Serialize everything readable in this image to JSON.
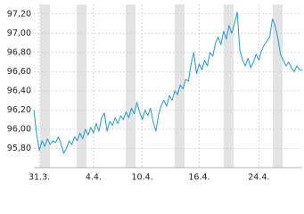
{
  "chart_data": {
    "type": "line",
    "series": [
      {
        "color": "#1a9bd7",
        "values": [
          96.2,
          95.95,
          95.78,
          95.88,
          95.82,
          95.9,
          95.84,
          95.88,
          95.86,
          95.92,
          95.85,
          95.75,
          95.8,
          95.88,
          95.84,
          95.92,
          95.88,
          95.96,
          95.9,
          96.0,
          95.94,
          96.02,
          95.96,
          96.06,
          95.98,
          96.12,
          96.17,
          95.98,
          96.08,
          96.04,
          96.12,
          96.06,
          96.14,
          96.1,
          96.18,
          96.12,
          96.22,
          96.16,
          96.28,
          96.18,
          96.1,
          96.2,
          96.14,
          96.22,
          96.08,
          95.98,
          96.15,
          96.25,
          96.3,
          96.24,
          96.35,
          96.3,
          96.4,
          96.36,
          96.46,
          96.42,
          96.52,
          96.5,
          96.68,
          96.8,
          96.58,
          96.68,
          96.62,
          96.72,
          96.66,
          96.8,
          96.76,
          96.9,
          96.96,
          96.88,
          97.02,
          96.94,
          97.08,
          97.0,
          97.1,
          97.22,
          96.82,
          96.72,
          96.66,
          96.74,
          96.64,
          96.7,
          96.78,
          96.72,
          96.82,
          96.88,
          96.92,
          96.96,
          97.15,
          97.08,
          96.95,
          96.78,
          96.72,
          96.66,
          96.7,
          96.64,
          96.6,
          96.66,
          96.62,
          96.61
        ]
      }
    ],
    "xlim": [
      0,
      99
    ],
    "xticks": [
      {
        "value": 2,
        "label": "31.3."
      },
      {
        "value": 22,
        "label": "4.4."
      },
      {
        "value": 40,
        "label": "10.4."
      },
      {
        "value": 61,
        "label": "16.4."
      },
      {
        "value": 83,
        "label": "24.4."
      }
    ],
    "ylim": [
      95.6,
      97.3
    ],
    "yticks": [
      {
        "value": 95.8,
        "label": "95,80"
      },
      {
        "value": 96.0,
        "label": "96,00"
      },
      {
        "value": 96.2,
        "label": "96,20"
      },
      {
        "value": 96.4,
        "label": "96,40"
      },
      {
        "value": 96.6,
        "label": "96,60"
      },
      {
        "value": 96.8,
        "label": "96,80"
      },
      {
        "value": 97.0,
        "label": "97,00"
      },
      {
        "value": 97.2,
        "label": "97,20"
      }
    ],
    "grid": true
  }
}
